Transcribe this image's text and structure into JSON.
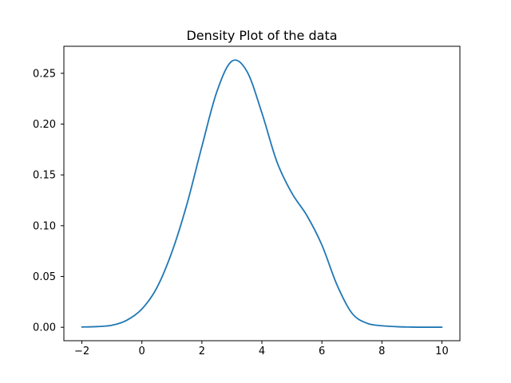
{
  "chart_data": {
    "type": "line",
    "title": "Density Plot of the data",
    "xlabel": "",
    "ylabel": "",
    "xlim": [
      -2.6,
      10.6
    ],
    "ylim": [
      -0.0132,
      0.2766
    ],
    "x_ticks": [
      -2,
      0,
      2,
      4,
      6,
      8,
      10
    ],
    "x_tick_labels": [
      "−2",
      "0",
      "2",
      "4",
      "6",
      "8",
      "10"
    ],
    "y_ticks": [
      0.0,
      0.05,
      0.1,
      0.15,
      0.2,
      0.25
    ],
    "y_tick_labels": [
      "0.00",
      "0.05",
      "0.10",
      "0.15",
      "0.20",
      "0.25"
    ],
    "grid": false,
    "legend": "none",
    "colors": {
      "line": "#1f77b4",
      "axes": "#000000",
      "background": "#ffffff"
    },
    "series": [
      {
        "x": [
          -2,
          -1.5,
          -1,
          -0.5,
          0,
          0.5,
          1,
          1.5,
          2,
          2.5,
          3,
          3.5,
          4,
          4.5,
          5,
          5.5,
          6,
          6.5,
          7,
          7.5,
          8,
          8.5,
          9,
          9.5,
          10
        ],
        "values": [
          0.0003,
          0.0007,
          0.002,
          0.007,
          0.018,
          0.039,
          0.074,
          0.121,
          0.178,
          0.232,
          0.262,
          0.252,
          0.211,
          0.163,
          0.132,
          0.11,
          0.081,
          0.042,
          0.014,
          0.004,
          0.0015,
          0.0006,
          0.0002,
          0.0001,
          0.0001
        ]
      }
    ]
  }
}
